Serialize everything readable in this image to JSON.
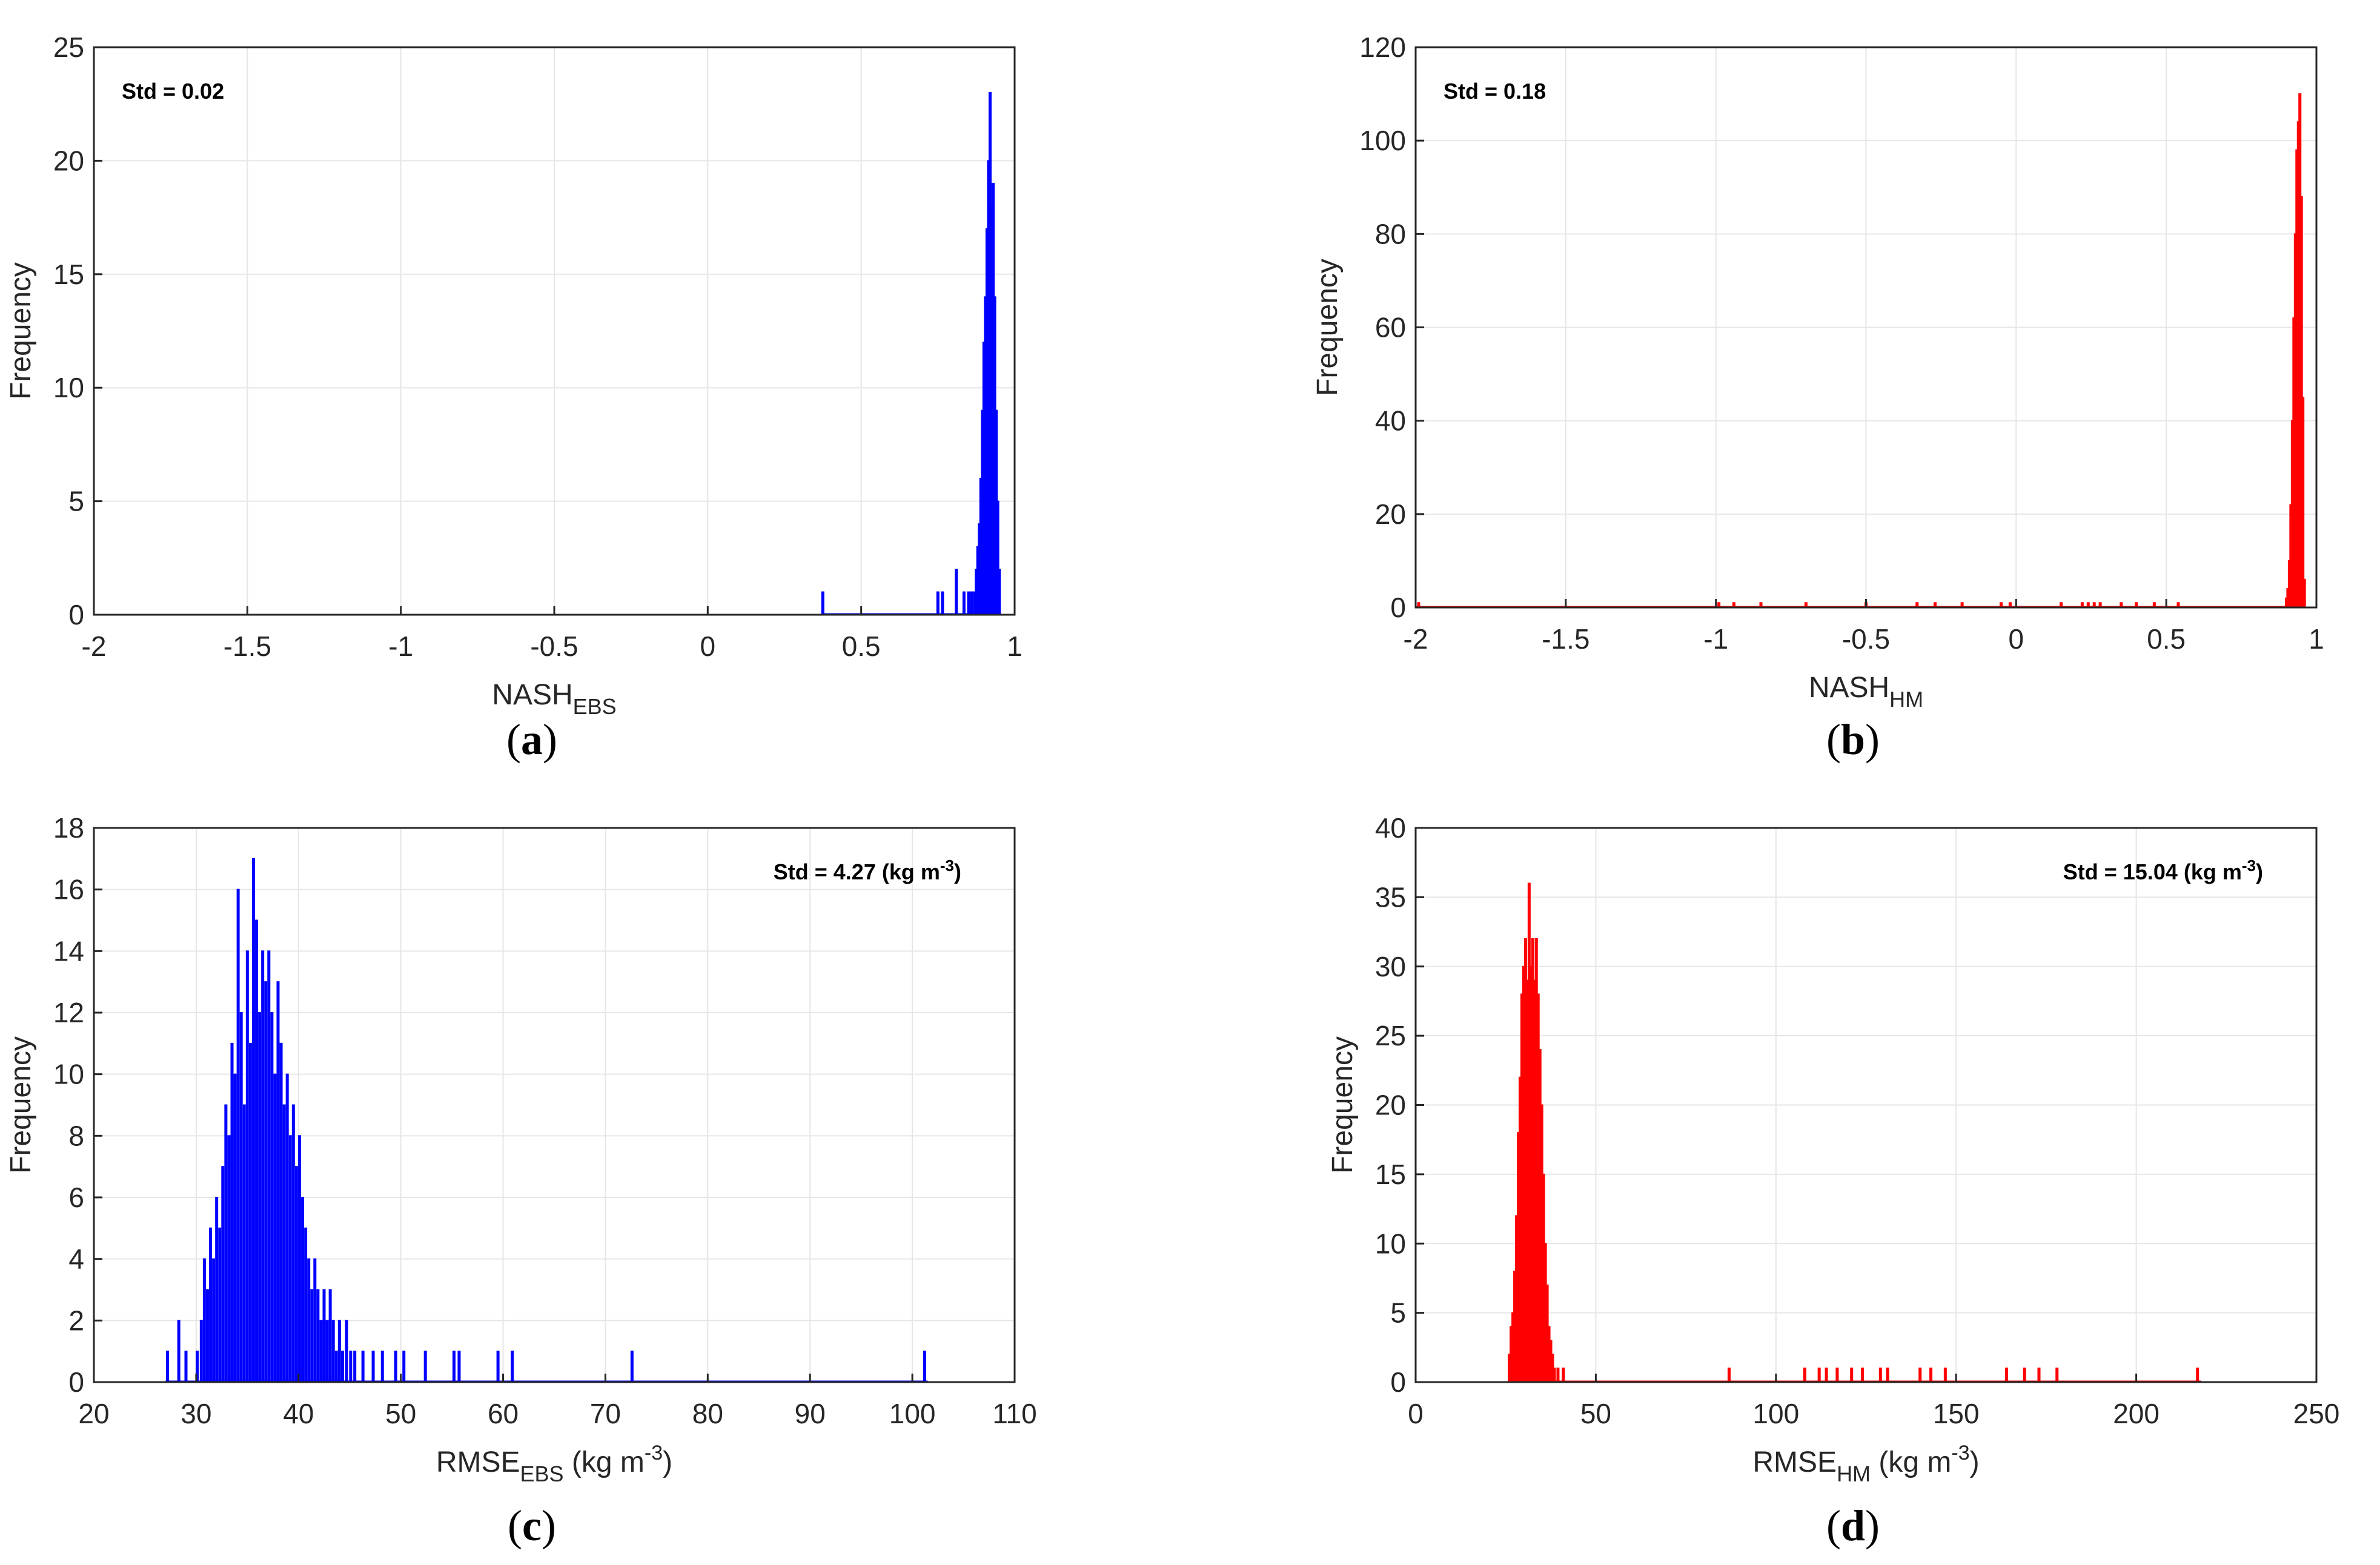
{
  "colors": {
    "ebs": "#0000ff",
    "hm": "#ff0000",
    "grid": "#e6e6e6",
    "axis": "#262626"
  },
  "chart_data": [
    {
      "id": "a",
      "type": "bar",
      "caption": "a",
      "annotation": "Std = 0.02",
      "annotation_position": "top-left",
      "xlabel": {
        "main": "NASH",
        "sub": "EBS",
        "unit": ""
      },
      "ylabel": "Frequency",
      "xlim": [
        -2,
        1
      ],
      "ylim": [
        0,
        25
      ],
      "xticks": [
        -2,
        -1.5,
        -1,
        -0.5,
        0,
        0.5,
        1
      ],
      "xtick_labels": [
        "-2",
        "-1.5",
        "-1",
        "-0.5",
        "0",
        "0.5",
        "1"
      ],
      "yticks": [
        0,
        5,
        10,
        15,
        20,
        25
      ],
      "grid": true,
      "color_key": "ebs",
      "bin_width": 0.005,
      "spans": [
        [
          0.37,
          0.95
        ]
      ],
      "bins": [
        [
          0.375,
          1
        ],
        [
          0.75,
          1
        ],
        [
          0.765,
          1
        ],
        [
          0.81,
          2
        ],
        [
          0.835,
          1
        ],
        [
          0.85,
          1
        ],
        [
          0.86,
          1
        ],
        [
          0.87,
          1
        ],
        [
          0.875,
          2
        ],
        [
          0.88,
          3
        ],
        [
          0.885,
          4
        ],
        [
          0.89,
          6
        ],
        [
          0.895,
          9
        ],
        [
          0.9,
          12
        ],
        [
          0.905,
          14
        ],
        [
          0.91,
          17
        ],
        [
          0.915,
          20
        ],
        [
          0.92,
          23
        ],
        [
          0.925,
          18
        ],
        [
          0.93,
          19
        ],
        [
          0.935,
          14
        ],
        [
          0.94,
          9
        ],
        [
          0.945,
          5
        ],
        [
          0.95,
          2
        ]
      ]
    },
    {
      "id": "b",
      "type": "bar",
      "caption": "b",
      "annotation": "Std = 0.18",
      "annotation_position": "top-left",
      "xlabel": {
        "main": "NASH",
        "sub": "HM",
        "unit": ""
      },
      "ylabel": "Frequency",
      "xlim": [
        -2,
        1
      ],
      "ylim": [
        0,
        120
      ],
      "xticks": [
        -2,
        -1.5,
        -1,
        -0.5,
        0,
        0.5,
        1
      ],
      "xtick_labels": [
        "-2",
        "-1.5",
        "-1",
        "-0.5",
        "0",
        "0.5",
        "1"
      ],
      "yticks": [
        0,
        20,
        40,
        60,
        80,
        100,
        120
      ],
      "grid": true,
      "color_key": "hm",
      "bin_width": 0.004,
      "spans": [
        [
          -2,
          0.96
        ]
      ],
      "bins": [
        [
          -1.99,
          1
        ],
        [
          -0.99,
          1
        ],
        [
          -0.94,
          1
        ],
        [
          -0.85,
          1
        ],
        [
          -0.7,
          1
        ],
        [
          -0.5,
          1
        ],
        [
          -0.33,
          1
        ],
        [
          -0.27,
          1
        ],
        [
          -0.18,
          1
        ],
        [
          -0.05,
          1
        ],
        [
          -0.02,
          1
        ],
        [
          0.15,
          1
        ],
        [
          0.22,
          1
        ],
        [
          0.24,
          1
        ],
        [
          0.26,
          1
        ],
        [
          0.28,
          1
        ],
        [
          0.35,
          1
        ],
        [
          0.4,
          1
        ],
        [
          0.46,
          1
        ],
        [
          0.54,
          1
        ],
        [
          0.9,
          2
        ],
        [
          0.905,
          4
        ],
        [
          0.91,
          10
        ],
        [
          0.915,
          22
        ],
        [
          0.92,
          40
        ],
        [
          0.925,
          62
        ],
        [
          0.93,
          80
        ],
        [
          0.935,
          98
        ],
        [
          0.94,
          104
        ],
        [
          0.945,
          110
        ],
        [
          0.95,
          88
        ],
        [
          0.955,
          45
        ],
        [
          0.96,
          6
        ]
      ]
    },
    {
      "id": "c",
      "type": "bar",
      "caption": "c",
      "annotation": "Std = 4.27 (kg m",
      "annotation_sup": "-3",
      "annotation_end": ")",
      "annotation_position": "top-right",
      "xlabel": {
        "main": "RMSE",
        "sub": "EBS",
        "unit": " (kg m",
        "unit_sup": "-3",
        "unit_end": ")"
      },
      "ylabel": "Frequency",
      "xlim": [
        20,
        110
      ],
      "ylim": [
        0,
        18
      ],
      "xticks": [
        20,
        30,
        40,
        50,
        60,
        70,
        80,
        90,
        100,
        110
      ],
      "xtick_labels": [
        "20",
        "30",
        "40",
        "50",
        "60",
        "70",
        "80",
        "90",
        "100",
        "110"
      ],
      "yticks": [
        0,
        2,
        4,
        6,
        8,
        10,
        12,
        14,
        16,
        18
      ],
      "grid": true,
      "color_key": "ebs",
      "bin_width": 0.1,
      "spans": [
        [
          27,
          101.5
        ]
      ],
      "bins": [
        [
          27.2,
          1
        ],
        [
          28.3,
          2
        ],
        [
          29,
          1
        ],
        [
          30.1,
          1
        ],
        [
          30.5,
          2
        ],
        [
          30.8,
          4
        ],
        [
          31.1,
          3
        ],
        [
          31.4,
          5
        ],
        [
          31.7,
          4
        ],
        [
          32.0,
          6
        ],
        [
          32.3,
          5
        ],
        [
          32.6,
          7
        ],
        [
          32.9,
          9
        ],
        [
          33.2,
          8
        ],
        [
          33.5,
          11
        ],
        [
          33.8,
          10
        ],
        [
          34.1,
          16
        ],
        [
          34.4,
          12
        ],
        [
          34.7,
          9
        ],
        [
          35.0,
          14
        ],
        [
          35.3,
          11
        ],
        [
          35.6,
          17
        ],
        [
          35.9,
          15
        ],
        [
          36.2,
          12
        ],
        [
          36.5,
          14
        ],
        [
          36.8,
          13
        ],
        [
          37.1,
          14
        ],
        [
          37.4,
          12
        ],
        [
          37.7,
          10
        ],
        [
          38.0,
          13
        ],
        [
          38.3,
          11
        ],
        [
          38.6,
          9
        ],
        [
          38.9,
          10
        ],
        [
          39.2,
          8
        ],
        [
          39.5,
          9
        ],
        [
          39.8,
          7
        ],
        [
          40.1,
          8
        ],
        [
          40.4,
          6
        ],
        [
          40.7,
          5
        ],
        [
          41.0,
          4
        ],
        [
          41.3,
          3
        ],
        [
          41.6,
          4
        ],
        [
          41.9,
          3
        ],
        [
          42.2,
          2
        ],
        [
          42.5,
          3
        ],
        [
          42.8,
          2
        ],
        [
          43.1,
          3
        ],
        [
          43.4,
          2
        ],
        [
          43.7,
          1
        ],
        [
          44.0,
          2
        ],
        [
          44.3,
          1
        ],
        [
          44.7,
          2
        ],
        [
          45.1,
          1
        ],
        [
          45.5,
          1
        ],
        [
          46.3,
          1
        ],
        [
          47.3,
          1
        ],
        [
          48.2,
          1
        ],
        [
          49.5,
          1
        ],
        [
          50.3,
          1
        ],
        [
          52.4,
          1
        ],
        [
          55.2,
          1
        ],
        [
          55.7,
          1
        ],
        [
          59.5,
          1
        ],
        [
          60.9,
          1
        ],
        [
          72.6,
          1
        ],
        [
          101.2,
          1
        ]
      ]
    },
    {
      "id": "d",
      "type": "bar",
      "caption": "d",
      "annotation": "Std = 15.04 (kg m",
      "annotation_sup": "-3",
      "annotation_end": ")",
      "annotation_position": "top-right",
      "xlabel": {
        "main": "RMSE",
        "sub": "HM",
        "unit": "  (kg m",
        "unit_sup": "-3",
        "unit_end": ")"
      },
      "ylabel": "Frequency",
      "xlim": [
        0,
        250
      ],
      "ylim": [
        0,
        40
      ],
      "xticks": [
        0,
        50,
        100,
        150,
        200,
        250
      ],
      "xtick_labels": [
        "0",
        "50",
        "100",
        "150",
        "200",
        "250"
      ],
      "yticks": [
        0,
        5,
        10,
        15,
        20,
        25,
        30,
        35,
        40
      ],
      "grid": true,
      "color_key": "hm",
      "bin_width": 0.3,
      "spans": [
        [
          26,
          218
        ]
      ],
      "bins": [
        [
          26,
          2
        ],
        [
          26.5,
          4
        ],
        [
          27,
          5
        ],
        [
          27.5,
          8
        ],
        [
          28,
          12
        ],
        [
          28.5,
          18
        ],
        [
          29,
          22
        ],
        [
          29.5,
          28
        ],
        [
          30,
          30
        ],
        [
          30.5,
          32
        ],
        [
          31,
          29
        ],
        [
          31.5,
          36
        ],
        [
          32,
          30
        ],
        [
          32.5,
          32
        ],
        [
          33,
          29
        ],
        [
          33.5,
          32
        ],
        [
          34,
          28
        ],
        [
          34.5,
          24
        ],
        [
          35,
          20
        ],
        [
          35.5,
          15
        ],
        [
          36,
          10
        ],
        [
          36.5,
          7
        ],
        [
          37,
          4
        ],
        [
          37.5,
          3
        ],
        [
          38,
          2
        ],
        [
          38.5,
          1
        ],
        [
          39.5,
          1
        ],
        [
          41,
          1
        ],
        [
          87,
          1
        ],
        [
          108,
          1
        ],
        [
          112,
          1
        ],
        [
          114,
          1
        ],
        [
          117,
          1
        ],
        [
          121,
          1
        ],
        [
          124,
          1
        ],
        [
          129,
          1
        ],
        [
          131,
          1
        ],
        [
          140,
          1
        ],
        [
          143,
          1
        ],
        [
          147,
          1
        ],
        [
          164,
          1
        ],
        [
          169,
          1
        ],
        [
          173,
          1
        ],
        [
          178,
          1
        ],
        [
          217,
          1
        ]
      ]
    }
  ]
}
